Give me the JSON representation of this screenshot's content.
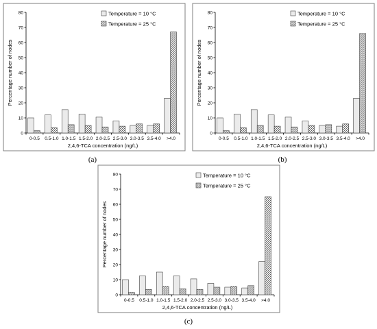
{
  "chart_data": [
    {
      "type": "bar",
      "caption": "(a)",
      "xlabel": "2,4,6-TCA concentration (ng/L)",
      "ylabel": "Percentage number of nodes",
      "ylim": [
        0,
        80
      ],
      "yticks": [
        0,
        10,
        20,
        30,
        40,
        50,
        60,
        70,
        80
      ],
      "categories": [
        "0-0.5",
        "0.5-1.0",
        "1.0-1.5",
        "1.5-2.0",
        "2.0-2.5",
        "2.5-3.0",
        "3.0-3.5",
        "3.5-4.0",
        ">4.0"
      ],
      "series": [
        {
          "name": "Temperature = 10 °C",
          "values": [
            10,
            12,
            15.5,
            12.5,
            10.5,
            8,
            5,
            5,
            23
          ]
        },
        {
          "name": "Temperature = 25 °C",
          "values": [
            1.5,
            3.5,
            5.5,
            5,
            4,
            4.5,
            6,
            6,
            67
          ]
        }
      ],
      "legend_position": "top-right",
      "grid": false
    },
    {
      "type": "bar",
      "caption": "(b)",
      "xlabel": "2,4,6-TCA concentration (ng/L)",
      "ylabel": "Percentage number of nodes",
      "ylim": [
        0,
        80
      ],
      "yticks": [
        0,
        10,
        20,
        30,
        40,
        50,
        60,
        70,
        80
      ],
      "categories": [
        "0-0.5",
        "0.5-1.0",
        "1.0-1.5",
        "1.5-2.0",
        "2.0-2.5",
        "2.5-3.0",
        "3.0-3.5",
        "3.5-4.0",
        ">4.0"
      ],
      "series": [
        {
          "name": "Temperature = 10 °C",
          "values": [
            10,
            12.5,
            15.5,
            12,
            10.5,
            8,
            5,
            4.5,
            23
          ]
        },
        {
          "name": "Temperature = 25 °C",
          "values": [
            1.5,
            3.5,
            5,
            4.5,
            4,
            5,
            5.5,
            6,
            66
          ]
        }
      ],
      "legend_position": "top-right",
      "grid": false
    },
    {
      "type": "bar",
      "caption": "(c)",
      "xlabel": "2,4,6-TCA concentration (ng/L)",
      "ylabel": "Percentage number of nodes",
      "ylim": [
        0,
        80
      ],
      "yticks": [
        0,
        10,
        20,
        30,
        40,
        50,
        60,
        70,
        80
      ],
      "categories": [
        "0-0.5",
        "0.5-1.0",
        "1.0-1.5",
        "1.5-2.0",
        "2.0-2.5",
        "2.5-3.0",
        "3.0-3.5",
        "3.5-4.0",
        ">4.0"
      ],
      "series": [
        {
          "name": "Temperature = 10 °C",
          "values": [
            10,
            12.5,
            15,
            12.5,
            10.5,
            7.5,
            5,
            4.5,
            22
          ]
        },
        {
          "name": "Temperature = 25 °C",
          "values": [
            1.5,
            3.5,
            5.5,
            4,
            3.5,
            5,
            5.5,
            6,
            65
          ]
        }
      ],
      "legend_position": "top-right",
      "grid": false
    }
  ]
}
